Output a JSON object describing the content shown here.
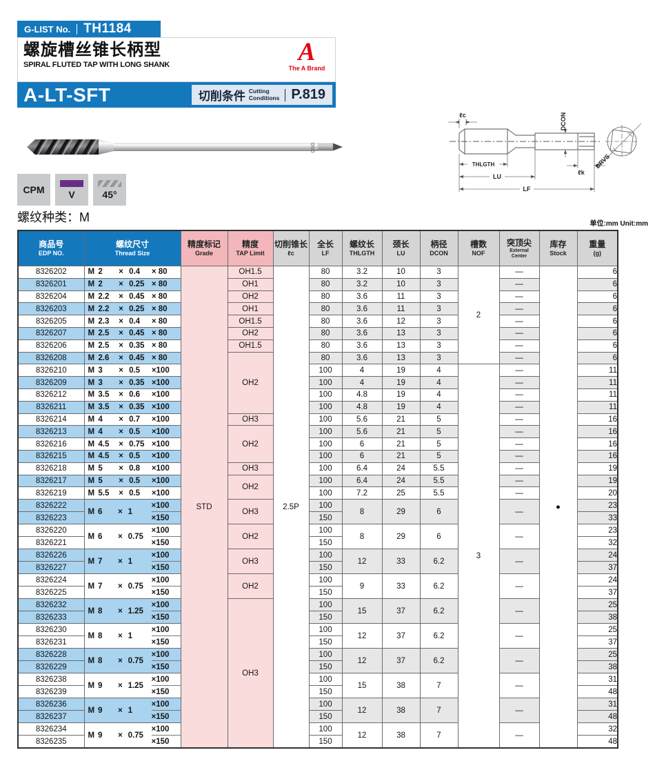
{
  "header": {
    "glist_label": "G-LIST No.",
    "glist_no": "TH1184",
    "title_cn": "螺旋槽丝锥长柄型",
    "title_en": "SPIRAL FLUTED TAP WITH LONG SHANK",
    "brand_letter": "A",
    "brand_caption": "The A Brand",
    "model": "A-LT-SFT",
    "cutting_cn": "切削条件",
    "cutting_en": "Cutting\nConditions",
    "cutting_page": "P.819"
  },
  "badges": {
    "cpm": "CPM",
    "v": "V",
    "angle": "45°"
  },
  "photo": {
    "logo": "OSG"
  },
  "diagram": {
    "lc": "ℓc",
    "dcon": "DCON",
    "thlgth": "THLGTH",
    "lu": "LU",
    "lf": "LF",
    "lk": "ℓk",
    "drvs": "DRVS"
  },
  "section": {
    "thread_type_label": "螺纹种类：M",
    "unit_note": "单位:mm  Unit:mm"
  },
  "table": {
    "columns": [
      {
        "key": "edp",
        "cn": "商品号",
        "en": "EDP NO."
      },
      {
        "key": "thread",
        "cn": "螺纹尺寸",
        "en": "Thread Size"
      },
      {
        "key": "grade",
        "cn": "精度标记",
        "en": "Grade"
      },
      {
        "key": "tap",
        "cn": "精度",
        "en": "TAP Limit"
      },
      {
        "key": "lc",
        "cn": "切削锥长",
        "en": "ℓc"
      },
      {
        "key": "lf",
        "cn": "全长",
        "en": "LF"
      },
      {
        "key": "thlgth",
        "cn": "螺纹长",
        "en": "THLGTH"
      },
      {
        "key": "lu",
        "cn": "颈长",
        "en": "LU"
      },
      {
        "key": "dcon",
        "cn": "柄径",
        "en": "DCON"
      },
      {
        "key": "nof",
        "cn": "槽数",
        "en": "NOF"
      },
      {
        "key": "ext",
        "cn": "突顶尖",
        "en": "External\nCenter"
      },
      {
        "key": "stock",
        "cn": "库存",
        "en": "Stock"
      },
      {
        "key": "wt",
        "cn": "重量",
        "en": "(g)"
      }
    ],
    "times": "×",
    "grade_value": "STD",
    "lc_value": "2.5P",
    "stock_value": "●",
    "ext_value": "—",
    "tap_spans": [
      [
        "OH1.5",
        1
      ],
      [
        "OH1",
        1
      ],
      [
        "OH2",
        1
      ],
      [
        "OH1",
        1
      ],
      [
        "OH1.5",
        1
      ],
      [
        "OH2",
        1
      ],
      [
        "OH1.5",
        1
      ],
      [
        "OH2",
        5
      ],
      [
        "OH3",
        1
      ],
      [
        "OH2",
        3
      ],
      [
        "OH3",
        1
      ],
      [
        "OH2",
        2
      ],
      [
        "OH3",
        2
      ],
      [
        "OH2",
        2
      ],
      [
        "OH3",
        2
      ],
      [
        "OH2",
        2
      ],
      [
        "OH3",
        12
      ]
    ],
    "nof_spans": [
      [
        "2",
        8
      ],
      [
        "3",
        31
      ]
    ],
    "rows": [
      {
        "edp": "8326202",
        "m": "M",
        "d": "2",
        "p": "0.4",
        "len": "× 80",
        "lf": "80",
        "thl": "3.2",
        "lu": "10",
        "dcon": "3",
        "wt": "6",
        "shade": false
      },
      {
        "edp": "8326201",
        "m": "M",
        "d": "2",
        "p": "0.25",
        "len": "× 80",
        "lf": "80",
        "thl": "3.2",
        "lu": "10",
        "dcon": "3",
        "wt": "6",
        "shade": true
      },
      {
        "edp": "8326204",
        "m": "M",
        "d": "2.2",
        "p": "0.45",
        "len": "× 80",
        "lf": "80",
        "thl": "3.6",
        "lu": "11",
        "dcon": "3",
        "wt": "6",
        "shade": false
      },
      {
        "edp": "8326203",
        "m": "M",
        "d": "2.2",
        "p": "0.25",
        "len": "× 80",
        "lf": "80",
        "thl": "3.6",
        "lu": "11",
        "dcon": "3",
        "wt": "6",
        "shade": true
      },
      {
        "edp": "8326205",
        "m": "M",
        "d": "2.3",
        "p": "0.4",
        "len": "× 80",
        "lf": "80",
        "thl": "3.6",
        "lu": "12",
        "dcon": "3",
        "wt": "6",
        "shade": false
      },
      {
        "edp": "8326207",
        "m": "M",
        "d": "2.5",
        "p": "0.45",
        "len": "× 80",
        "lf": "80",
        "thl": "3.6",
        "lu": "13",
        "dcon": "3",
        "wt": "6",
        "shade": true
      },
      {
        "edp": "8326206",
        "m": "M",
        "d": "2.5",
        "p": "0.35",
        "len": "× 80",
        "lf": "80",
        "thl": "3.6",
        "lu": "13",
        "dcon": "3",
        "wt": "6",
        "shade": false
      },
      {
        "edp": "8326208",
        "m": "M",
        "d": "2.6",
        "p": "0.45",
        "len": "× 80",
        "lf": "80",
        "thl": "3.6",
        "lu": "13",
        "dcon": "3",
        "wt": "6",
        "shade": true
      },
      {
        "edp": "8326210",
        "m": "M",
        "d": "3",
        "p": "0.5",
        "len": "×100",
        "lf": "100",
        "thl": "4",
        "lu": "19",
        "dcon": "4",
        "wt": "11",
        "shade": false
      },
      {
        "edp": "8326209",
        "m": "M",
        "d": "3",
        "p": "0.35",
        "len": "×100",
        "lf": "100",
        "thl": "4",
        "lu": "19",
        "dcon": "4",
        "wt": "11",
        "shade": true
      },
      {
        "edp": "8326212",
        "m": "M",
        "d": "3.5",
        "p": "0.6",
        "len": "×100",
        "lf": "100",
        "thl": "4.8",
        "lu": "19",
        "dcon": "4",
        "wt": "11",
        "shade": false
      },
      {
        "edp": "8326211",
        "m": "M",
        "d": "3.5",
        "p": "0.35",
        "len": "×100",
        "lf": "100",
        "thl": "4.8",
        "lu": "19",
        "dcon": "4",
        "wt": "11",
        "shade": true
      },
      {
        "edp": "8326214",
        "m": "M",
        "d": "4",
        "p": "0.7",
        "len": "×100",
        "lf": "100",
        "thl": "5.6",
        "lu": "21",
        "dcon": "5",
        "wt": "16",
        "shade": false
      },
      {
        "edp": "8326213",
        "m": "M",
        "d": "4",
        "p": "0.5",
        "len": "×100",
        "lf": "100",
        "thl": "5.6",
        "lu": "21",
        "dcon": "5",
        "wt": "16",
        "shade": true
      },
      {
        "edp": "8326216",
        "m": "M",
        "d": "4.5",
        "p": "0.75",
        "len": "×100",
        "lf": "100",
        "thl": "6",
        "lu": "21",
        "dcon": "5",
        "wt": "16",
        "shade": false
      },
      {
        "edp": "8326215",
        "m": "M",
        "d": "4.5",
        "p": "0.5",
        "len": "×100",
        "lf": "100",
        "thl": "6",
        "lu": "21",
        "dcon": "5",
        "wt": "16",
        "shade": true
      },
      {
        "edp": "8326218",
        "m": "M",
        "d": "5",
        "p": "0.8",
        "len": "×100",
        "lf": "100",
        "thl": "6.4",
        "lu": "24",
        "dcon": "5.5",
        "wt": "19",
        "shade": false
      },
      {
        "edp": "8326217",
        "m": "M",
        "d": "5",
        "p": "0.5",
        "len": "×100",
        "lf": "100",
        "thl": "6.4",
        "lu": "24",
        "dcon": "5.5",
        "wt": "19",
        "shade": true
      },
      {
        "edp": "8326219",
        "m": "M",
        "d": "5.5",
        "p": "0.5",
        "len": "×100",
        "lf": "100",
        "thl": "7.2",
        "lu": "25",
        "dcon": "5.5",
        "wt": "20",
        "shade": false
      },
      {
        "pair": true,
        "edp": [
          "8326222",
          "8326223"
        ],
        "m": "M",
        "d": "6",
        "p": "1",
        "len": [
          "×100",
          "×150"
        ],
        "lf": [
          "100",
          "150"
        ],
        "thl": "8",
        "lu": "29",
        "dcon": "6",
        "wt": [
          "23",
          "33"
        ],
        "shade": true
      },
      {
        "pair": true,
        "edp": [
          "8326220",
          "8326221"
        ],
        "m": "M",
        "d": "6",
        "p": "0.75",
        "len": [
          "×100",
          "×150"
        ],
        "lf": [
          "100",
          "150"
        ],
        "thl": "8",
        "lu": "29",
        "dcon": "6",
        "wt": [
          "23",
          "32"
        ],
        "shade": false
      },
      {
        "pair": true,
        "edp": [
          "8326226",
          "8326227"
        ],
        "m": "M",
        "d": "7",
        "p": "1",
        "len": [
          "×100",
          "×150"
        ],
        "lf": [
          "100",
          "150"
        ],
        "thl": "12",
        "lu": "33",
        "dcon": "6.2",
        "wt": [
          "24",
          "37"
        ],
        "shade": true
      },
      {
        "pair": true,
        "edp": [
          "8326224",
          "8326225"
        ],
        "m": "M",
        "d": "7",
        "p": "0.75",
        "len": [
          "×100",
          "×150"
        ],
        "lf": [
          "100",
          "150"
        ],
        "thl": "9",
        "lu": "33",
        "dcon": "6.2",
        "wt": [
          "24",
          "37"
        ],
        "shade": false
      },
      {
        "pair": true,
        "edp": [
          "8326232",
          "8326233"
        ],
        "m": "M",
        "d": "8",
        "p": "1.25",
        "len": [
          "×100",
          "×150"
        ],
        "lf": [
          "100",
          "150"
        ],
        "thl": "15",
        "lu": "37",
        "dcon": "6.2",
        "wt": [
          "25",
          "38"
        ],
        "shade": true
      },
      {
        "pair": true,
        "edp": [
          "8326230",
          "8326231"
        ],
        "m": "M",
        "d": "8",
        "p": "1",
        "len": [
          "×100",
          "×150"
        ],
        "lf": [
          "100",
          "150"
        ],
        "thl": "12",
        "lu": "37",
        "dcon": "6.2",
        "wt": [
          "25",
          "37"
        ],
        "shade": false
      },
      {
        "pair": true,
        "edp": [
          "8326228",
          "8326229"
        ],
        "m": "M",
        "d": "8",
        "p": "0.75",
        "len": [
          "×100",
          "×150"
        ],
        "lf": [
          "100",
          "150"
        ],
        "thl": "12",
        "lu": "37",
        "dcon": "6.2",
        "wt": [
          "25",
          "38"
        ],
        "shade": true
      },
      {
        "pair": true,
        "edp": [
          "8326238",
          "8326239"
        ],
        "m": "M",
        "d": "9",
        "p": "1.25",
        "len": [
          "×100",
          "×150"
        ],
        "lf": [
          "100",
          "150"
        ],
        "thl": "15",
        "lu": "38",
        "dcon": "7",
        "wt": [
          "31",
          "48"
        ],
        "shade": false
      },
      {
        "pair": true,
        "edp": [
          "8326236",
          "8326237"
        ],
        "m": "M",
        "d": "9",
        "p": "1",
        "len": [
          "×100",
          "×150"
        ],
        "lf": [
          "100",
          "150"
        ],
        "thl": "12",
        "lu": "38",
        "dcon": "7",
        "wt": [
          "31",
          "48"
        ],
        "shade": true
      },
      {
        "pair": true,
        "edp": [
          "8326234",
          "8326235"
        ],
        "m": "M",
        "d": "9",
        "p": "0.75",
        "len": [
          "×100",
          "×150"
        ],
        "lf": [
          "100",
          "150"
        ],
        "thl": "12",
        "lu": "38",
        "dcon": "7",
        "wt": [
          "32",
          "48"
        ],
        "shade": false
      }
    ]
  }
}
